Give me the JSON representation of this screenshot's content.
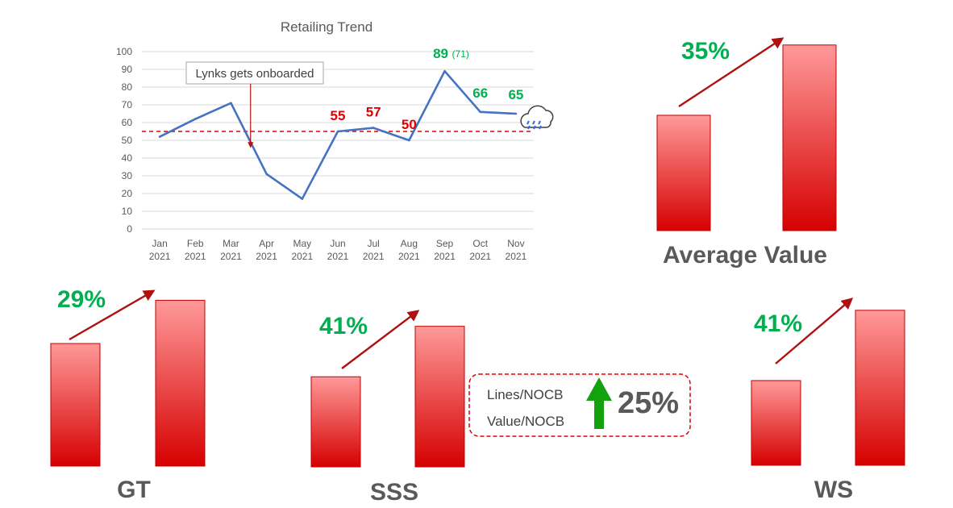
{
  "chart_data": [
    {
      "type": "line",
      "title": "Retailing Trend",
      "categories": [
        "Jan 2021",
        "Feb 2021",
        "Mar 2021",
        "Apr 2021",
        "May 2021",
        "Jun 2021",
        "Jul 2021",
        "Aug 2021",
        "Sep 2021",
        "Oct 2021",
        "Nov 2021"
      ],
      "category_lines": [
        [
          "Jan",
          "2021"
        ],
        [
          "Feb",
          "2021"
        ],
        [
          "Mar",
          "2021"
        ],
        [
          "Apr",
          "2021"
        ],
        [
          "May",
          "2021"
        ],
        [
          "Jun",
          "2021"
        ],
        [
          "Jul",
          "2021"
        ],
        [
          "Aug",
          "2021"
        ],
        [
          "Sep",
          "2021"
        ],
        [
          "Oct",
          "2021"
        ],
        [
          "Nov",
          "2021"
        ]
      ],
      "values": [
        52,
        62,
        71,
        31,
        17,
        55,
        57,
        50,
        89,
        66,
        65
      ],
      "ylim": [
        0,
        100
      ],
      "yticks": [
        0,
        10,
        20,
        30,
        40,
        50,
        60,
        70,
        80,
        90,
        100
      ],
      "grid": true,
      "reference_line": 55,
      "series_color": "#4472c4",
      "data_labels": [
        {
          "index": 5,
          "text": "55",
          "color": "red"
        },
        {
          "index": 6,
          "text": "57",
          "color": "red"
        },
        {
          "index": 7,
          "text": "50",
          "color": "red"
        },
        {
          "index": 8,
          "text": "89",
          "note": "(71)",
          "color": "green"
        },
        {
          "index": 9,
          "text": "66",
          "color": "green"
        },
        {
          "index": 10,
          "text": "65",
          "color": "green"
        }
      ],
      "annotation": {
        "text": "Lynks gets onboarded",
        "index": 2.55
      },
      "icon": "rain-cloud-icon"
    },
    {
      "type": "bar",
      "title": "Average Value",
      "values": [
        64,
        103
      ],
      "change": "35%"
    },
    {
      "type": "bar",
      "title": "GT",
      "values": [
        68,
        92
      ],
      "change": "29%"
    },
    {
      "type": "bar",
      "title": "SSS",
      "values": [
        50,
        78
      ],
      "change": "41%"
    },
    {
      "type": "bar",
      "title": "WS",
      "values": [
        47,
        86
      ],
      "change": "41%"
    }
  ],
  "nocb": {
    "lines": "Lines/NOCB",
    "value": "Value/NOCB",
    "change": "25%"
  },
  "colors": {
    "green": "#00b050",
    "red": "#e00000",
    "bar_top": "#ff9999",
    "bar_bottom": "#d60000",
    "arrow": "#b01010",
    "line": "#4472c4"
  }
}
